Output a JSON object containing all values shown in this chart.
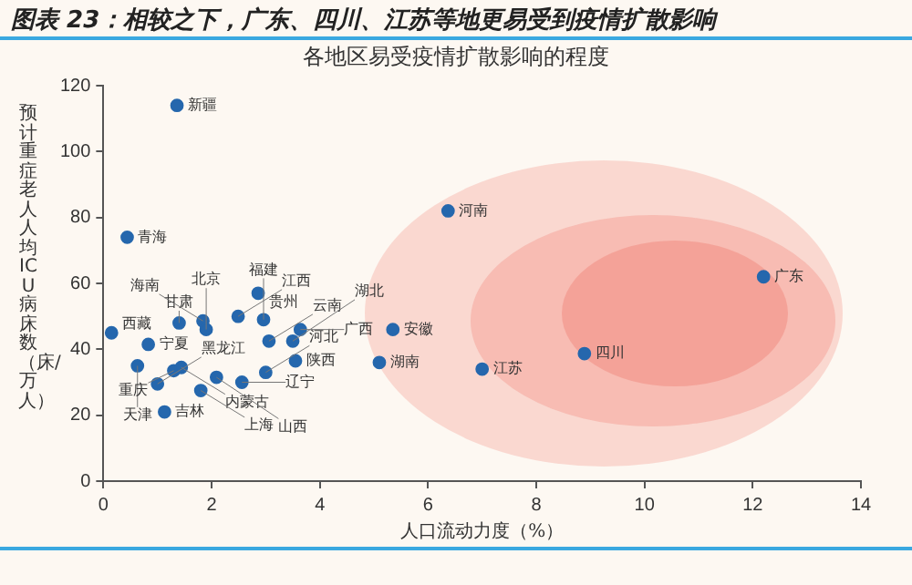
{
  "chart_data": {
    "type": "scatter",
    "title": "图表 23：相较之下，广东、四川、江苏等地更易受到疫情扩散影响",
    "subtitle": "各地区易受疫情扩散影响的程度",
    "xlabel": "人口流动力度（%）",
    "ylabel": "预计重症老人人均ICU病床数（床/万人）",
    "xlim": [
      0,
      14
    ],
    "xticks": [
      0,
      2,
      4,
      6,
      8,
      10,
      12,
      14
    ],
    "ylim": [
      0,
      120
    ],
    "yticks": [
      0,
      20,
      40,
      60,
      80,
      100,
      120
    ],
    "grid": false,
    "legend": false,
    "marker": "circle",
    "series": [
      {
        "color": "#2567ad",
        "x": [
          1.36,
          0.44,
          6.37,
          12.2,
          8.89,
          7.0,
          5.1,
          5.35,
          0.15,
          0.83,
          0.63,
          1.0,
          1.13,
          1.3,
          1.44,
          1.8,
          2.09,
          2.56,
          3.0,
          3.55,
          1.4,
          1.84,
          1.9,
          2.49,
          2.86,
          2.96,
          3.06,
          3.5,
          3.64
        ],
        "values": [
          114,
          74,
          82,
          62,
          38.7,
          34,
          36,
          46,
          45,
          41.5,
          35,
          29.5,
          21,
          33.5,
          34.5,
          27.5,
          31.5,
          30,
          33,
          36.5,
          48,
          48.6,
          46,
          50,
          57,
          49,
          42.5,
          42.5,
          46
        ]
      }
    ],
    "annotations": [
      {
        "text": "新疆",
        "x": 1.36,
        "y": 114
      },
      {
        "text": "青海",
        "x": 0.44,
        "y": 74
      },
      {
        "text": "河南",
        "x": 6.37,
        "y": 82
      },
      {
        "text": "广东",
        "x": 12.2,
        "y": 62
      },
      {
        "text": "四川",
        "x": 8.89,
        "y": 38.7
      },
      {
        "text": "江苏",
        "x": 7.0,
        "y": 34
      },
      {
        "text": "湖南",
        "x": 5.1,
        "y": 36
      },
      {
        "text": "安徽",
        "x": 5.35,
        "y": 46
      },
      {
        "text": "西藏",
        "x": 0.15,
        "y": 45
      },
      {
        "text": "宁夏",
        "x": 0.83,
        "y": 41.5
      },
      {
        "text": "天津",
        "x": 0.63,
        "y": 35
      },
      {
        "text": "黑龙江",
        "x": 1.0,
        "y": 29.5
      },
      {
        "text": "吉林",
        "x": 1.13,
        "y": 21
      },
      {
        "text": "重庆",
        "x": 1.3,
        "y": 33.5
      },
      {
        "text": "内蒙古",
        "x": 1.44,
        "y": 34.5
      },
      {
        "text": "上海",
        "x": 1.8,
        "y": 27.5
      },
      {
        "text": "山西",
        "x": 2.09,
        "y": 31.5
      },
      {
        "text": "辽宁",
        "x": 2.56,
        "y": 30
      },
      {
        "text": "河北",
        "x": 3.0,
        "y": 33
      },
      {
        "text": "陕西",
        "x": 3.55,
        "y": 36.5
      },
      {
        "text": "甘肃",
        "x": 1.4,
        "y": 48
      },
      {
        "text": "海南",
        "x": 1.84,
        "y": 48.6
      },
      {
        "text": "北京",
        "x": 1.9,
        "y": 46
      },
      {
        "text": "江西",
        "x": 2.49,
        "y": 50
      },
      {
        "text": "贵州",
        "x": 2.86,
        "y": 57
      },
      {
        "text": "福建",
        "x": 2.96,
        "y": 49
      },
      {
        "text": "云南",
        "x": 3.06,
        "y": 42.5
      },
      {
        "text": "湖北",
        "x": 3.5,
        "y": 42.5
      },
      {
        "text": "广西",
        "x": 3.64,
        "y": 46
      }
    ]
  }
}
